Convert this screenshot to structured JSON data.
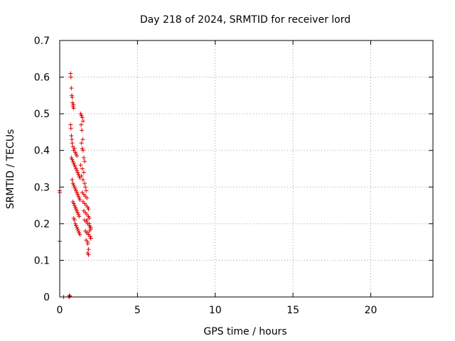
{
  "chart_data": {
    "type": "scatter",
    "title": "Day 218 of 2024, SRMTID for receiver lord",
    "xlabel": "GPS time / hours",
    "ylabel": "SRMTID / TECUs",
    "xlim": [
      0,
      24
    ],
    "ylim": [
      0,
      0.7
    ],
    "x_ticks": [
      0,
      5,
      10,
      15,
      20
    ],
    "x_tick_labels": [
      "0",
      "5",
      "10",
      "15",
      "20"
    ],
    "y_ticks": [
      0,
      0.1,
      0.2,
      0.3,
      0.4,
      0.5,
      0.6,
      0.7
    ],
    "y_tick_labels": [
      "0",
      "0.1",
      "0.2",
      "0.3",
      "0.4",
      "0.5",
      "0.6",
      "0.7"
    ],
    "grid": true,
    "marker": "+",
    "color": "#dd0000",
    "series": [
      {
        "name": "SRMTID",
        "x": [
          0.0,
          0.0,
          0.0,
          0.25,
          0.6,
          0.65,
          0.62,
          0.7,
          0.72,
          0.75,
          0.78,
          0.8,
          0.82,
          0.85,
          0.88,
          0.9,
          0.7,
          0.72,
          0.75,
          0.78,
          0.8,
          0.85,
          0.9,
          0.95,
          1.0,
          1.05,
          1.1,
          0.75,
          0.8,
          0.85,
          0.9,
          0.95,
          1.0,
          1.05,
          1.1,
          1.15,
          1.2,
          1.25,
          1.3,
          0.8,
          0.85,
          0.9,
          0.95,
          1.0,
          1.05,
          1.1,
          1.15,
          1.2,
          1.25,
          1.3,
          0.85,
          0.9,
          0.95,
          1.0,
          1.05,
          1.1,
          1.15,
          1.2,
          1.25,
          0.9,
          0.95,
          1.0,
          1.05,
          1.1,
          1.15,
          1.2,
          1.25,
          1.3,
          1.35,
          1.4,
          1.45,
          1.5,
          1.38,
          1.42,
          1.48,
          1.4,
          1.45,
          1.5,
          1.55,
          1.6,
          1.35,
          1.45,
          1.55,
          1.4,
          1.5,
          1.6,
          1.65,
          1.7,
          1.45,
          1.55,
          1.65,
          1.75,
          1.5,
          1.6,
          1.7,
          1.8,
          1.85,
          1.55,
          1.65,
          1.75,
          1.85,
          1.9,
          1.6,
          1.7,
          1.8,
          1.9,
          1.95,
          2.0,
          1.65,
          1.75,
          1.85,
          1.95,
          2.0,
          1.7,
          1.8,
          1.9,
          2.0,
          1.75,
          1.85,
          1.95,
          1.8,
          1.85,
          1.9,
          2.0,
          1.8,
          1.85,
          1.75
        ],
        "y": [
          0.29,
          0.285,
          0.152,
          0.0,
          0.0,
          0.002,
          0.004,
          0.61,
          0.6,
          0.57,
          0.55,
          0.545,
          0.53,
          0.52,
          0.525,
          0.515,
          0.47,
          0.46,
          0.44,
          0.43,
          0.42,
          0.41,
          0.4,
          0.405,
          0.395,
          0.39,
          0.385,
          0.38,
          0.375,
          0.37,
          0.365,
          0.36,
          0.355,
          0.35,
          0.345,
          0.34,
          0.335,
          0.33,
          0.325,
          0.32,
          0.31,
          0.305,
          0.3,
          0.295,
          0.29,
          0.285,
          0.28,
          0.275,
          0.27,
          0.265,
          0.26,
          0.255,
          0.25,
          0.245,
          0.24,
          0.235,
          0.23,
          0.225,
          0.22,
          0.215,
          0.21,
          0.2,
          0.195,
          0.19,
          0.185,
          0.18,
          0.175,
          0.17,
          0.5,
          0.495,
          0.49,
          0.48,
          0.47,
          0.455,
          0.43,
          0.42,
          0.405,
          0.4,
          0.38,
          0.37,
          0.36,
          0.35,
          0.34,
          0.33,
          0.32,
          0.31,
          0.3,
          0.29,
          0.285,
          0.28,
          0.275,
          0.27,
          0.26,
          0.255,
          0.25,
          0.245,
          0.24,
          0.235,
          0.23,
          0.225,
          0.22,
          0.215,
          0.21,
          0.205,
          0.2,
          0.195,
          0.19,
          0.185,
          0.18,
          0.175,
          0.17,
          0.165,
          0.16,
          0.155,
          0.15,
          0.2,
          0.19,
          0.175,
          0.17,
          0.165,
          0.145,
          0.13,
          0.18,
          0.16,
          0.12,
          0.115,
          0.21
        ]
      }
    ]
  }
}
